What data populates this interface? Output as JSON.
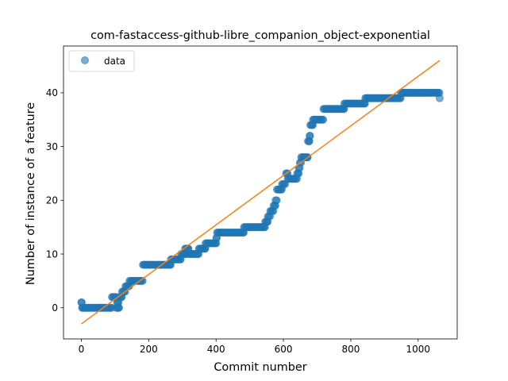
{
  "chart_data": {
    "type": "scatter",
    "title": "com-fastaccess-github-libre_companion_object-exponential",
    "xlabel": "Commit number",
    "ylabel": "Number of instance of a feature",
    "xlim": [
      -53,
      1116
    ],
    "ylim": [
      -5.8,
      48.7
    ],
    "xticks": [
      0,
      200,
      400,
      600,
      800,
      1000
    ],
    "yticks": [
      0,
      10,
      20,
      30,
      40
    ],
    "grid": false,
    "legend": {
      "position": "top-left",
      "entries": [
        "data"
      ]
    },
    "series": [
      {
        "name": "data",
        "kind": "points",
        "color": "#1f77b4",
        "segments": [
          [
            0,
            1,
            1
          ],
          [
            2,
            5,
            0
          ],
          [
            6,
            90,
            0
          ],
          [
            91,
            103,
            2
          ],
          [
            104,
            112,
            0
          ],
          [
            106,
            110,
            1
          ],
          [
            113,
            120,
            2
          ],
          [
            121,
            130,
            3
          ],
          [
            131,
            142,
            4
          ],
          [
            143,
            182,
            5
          ],
          [
            183,
            265,
            8
          ],
          [
            266,
            295,
            9
          ],
          [
            296,
            312,
            10
          ],
          [
            308,
            318,
            11
          ],
          [
            319,
            348,
            10
          ],
          [
            349,
            368,
            11
          ],
          [
            369,
            400,
            12
          ],
          [
            401,
            402,
            13
          ],
          [
            403,
            482,
            14
          ],
          [
            483,
            545,
            15
          ],
          [
            546,
            553,
            16
          ],
          [
            554,
            560,
            17
          ],
          [
            561,
            570,
            18
          ],
          [
            571,
            576,
            19
          ],
          [
            577,
            580,
            20
          ],
          [
            581,
            595,
            22
          ],
          [
            596,
            605,
            23
          ],
          [
            608,
            612,
            25
          ],
          [
            613,
            640,
            24
          ],
          [
            641,
            645,
            25
          ],
          [
            646,
            648,
            26
          ],
          [
            649,
            652,
            27
          ],
          [
            653,
            672,
            28
          ],
          [
            673,
            677,
            31
          ],
          [
            678,
            679,
            32
          ],
          [
            680,
            687,
            34
          ],
          [
            688,
            718,
            35
          ],
          [
            719,
            780,
            37
          ],
          [
            781,
            842,
            38
          ],
          [
            843,
            948,
            39
          ],
          [
            949,
            1063,
            40
          ],
          [
            1064,
            1064,
            39
          ]
        ]
      },
      {
        "name": "",
        "kind": "line",
        "color": "#ff7f0e",
        "x": [
          0,
          1064
        ],
        "y": [
          -3,
          46
        ]
      }
    ]
  }
}
